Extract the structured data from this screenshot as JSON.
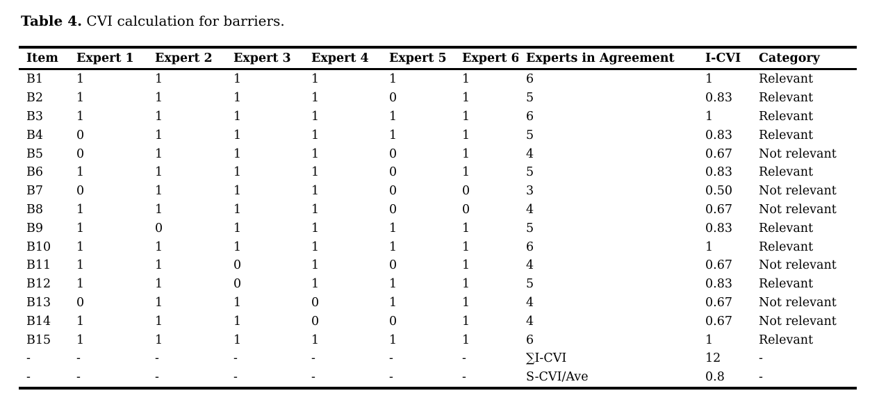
{
  "title": {
    "label": "Table 4.",
    "text": " CVI calculation for barriers."
  },
  "table": {
    "columns": [
      "Item",
      "Expert 1",
      "Expert 2",
      "Expert 3",
      "Expert 4",
      "Expert 5",
      "Expert 6",
      "Experts in Agreement",
      "I-CVI",
      "Category"
    ],
    "rows": [
      [
        "B1",
        "1",
        "1",
        "1",
        "1",
        "1",
        "1",
        "6",
        "1",
        "Relevant"
      ],
      [
        "B2",
        "1",
        "1",
        "1",
        "1",
        "0",
        "1",
        "5",
        "0.83",
        "Relevant"
      ],
      [
        "B3",
        "1",
        "1",
        "1",
        "1",
        "1",
        "1",
        "6",
        "1",
        "Relevant"
      ],
      [
        "B4",
        "0",
        "1",
        "1",
        "1",
        "1",
        "1",
        "5",
        "0.83",
        "Relevant"
      ],
      [
        "B5",
        "0",
        "1",
        "1",
        "1",
        "0",
        "1",
        "4",
        "0.67",
        "Not relevant"
      ],
      [
        "B6",
        "1",
        "1",
        "1",
        "1",
        "0",
        "1",
        "5",
        "0.83",
        "Relevant"
      ],
      [
        "B7",
        "0",
        "1",
        "1",
        "1",
        "0",
        "0",
        "3",
        "0.50",
        "Not relevant"
      ],
      [
        "B8",
        "1",
        "1",
        "1",
        "1",
        "0",
        "0",
        "4",
        "0.67",
        "Not relevant"
      ],
      [
        "B9",
        "1",
        "0",
        "1",
        "1",
        "1",
        "1",
        "5",
        "0.83",
        "Relevant"
      ],
      [
        "B10",
        "1",
        "1",
        "1",
        "1",
        "1",
        "1",
        "6",
        "1",
        "Relevant"
      ],
      [
        "B11",
        "1",
        "1",
        "0",
        "1",
        "0",
        "1",
        "4",
        "0.67",
        "Not relevant"
      ],
      [
        "B12",
        "1",
        "1",
        "0",
        "1",
        "1",
        "1",
        "5",
        "0.83",
        "Relevant"
      ],
      [
        "B13",
        "0",
        "1",
        "1",
        "0",
        "1",
        "1",
        "4",
        "0.67",
        "Not relevant"
      ],
      [
        "B14",
        "1",
        "1",
        "1",
        "0",
        "0",
        "1",
        "4",
        "0.67",
        "Not relevant"
      ],
      [
        "B15",
        "1",
        "1",
        "1",
        "1",
        "1",
        "1",
        "6",
        "1",
        "Relevant"
      ]
    ],
    "summary_rows": [
      [
        "-",
        "-",
        "-",
        "-",
        "-",
        "-",
        "-",
        "∑I-CVI",
        "12",
        "-"
      ],
      [
        "-",
        "-",
        "-",
        "-",
        "-",
        "-",
        "-",
        "S-CVI/Ave",
        "0.8",
        "-"
      ]
    ]
  }
}
